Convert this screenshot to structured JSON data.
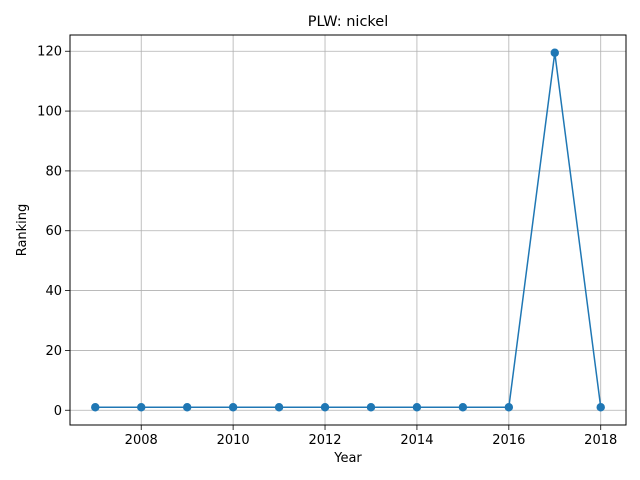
{
  "chart_data": {
    "type": "line",
    "title": "PLW: nickel",
    "xlabel": "Year",
    "ylabel": "Ranking",
    "x": [
      2007,
      2008,
      2009,
      2010,
      2011,
      2012,
      2013,
      2014,
      2015,
      2016,
      2017,
      2018
    ],
    "series": [
      {
        "values": [
          1,
          1,
          1,
          1,
          1,
          1,
          1,
          1,
          1,
          1,
          119.5,
          1
        ],
        "color": "#1f77b4",
        "marker": "circle"
      }
    ],
    "xlim": [
      2006.45,
      2018.55
    ],
    "ylim": [
      -4.93,
      125.43
    ],
    "xticks": [
      2008,
      2010,
      2012,
      2014,
      2016,
      2018
    ],
    "yticks": [
      0,
      20,
      40,
      60,
      80,
      100,
      120
    ],
    "grid": true,
    "colors": {
      "grid": "#b0b0b0",
      "axis": "#000000"
    }
  }
}
